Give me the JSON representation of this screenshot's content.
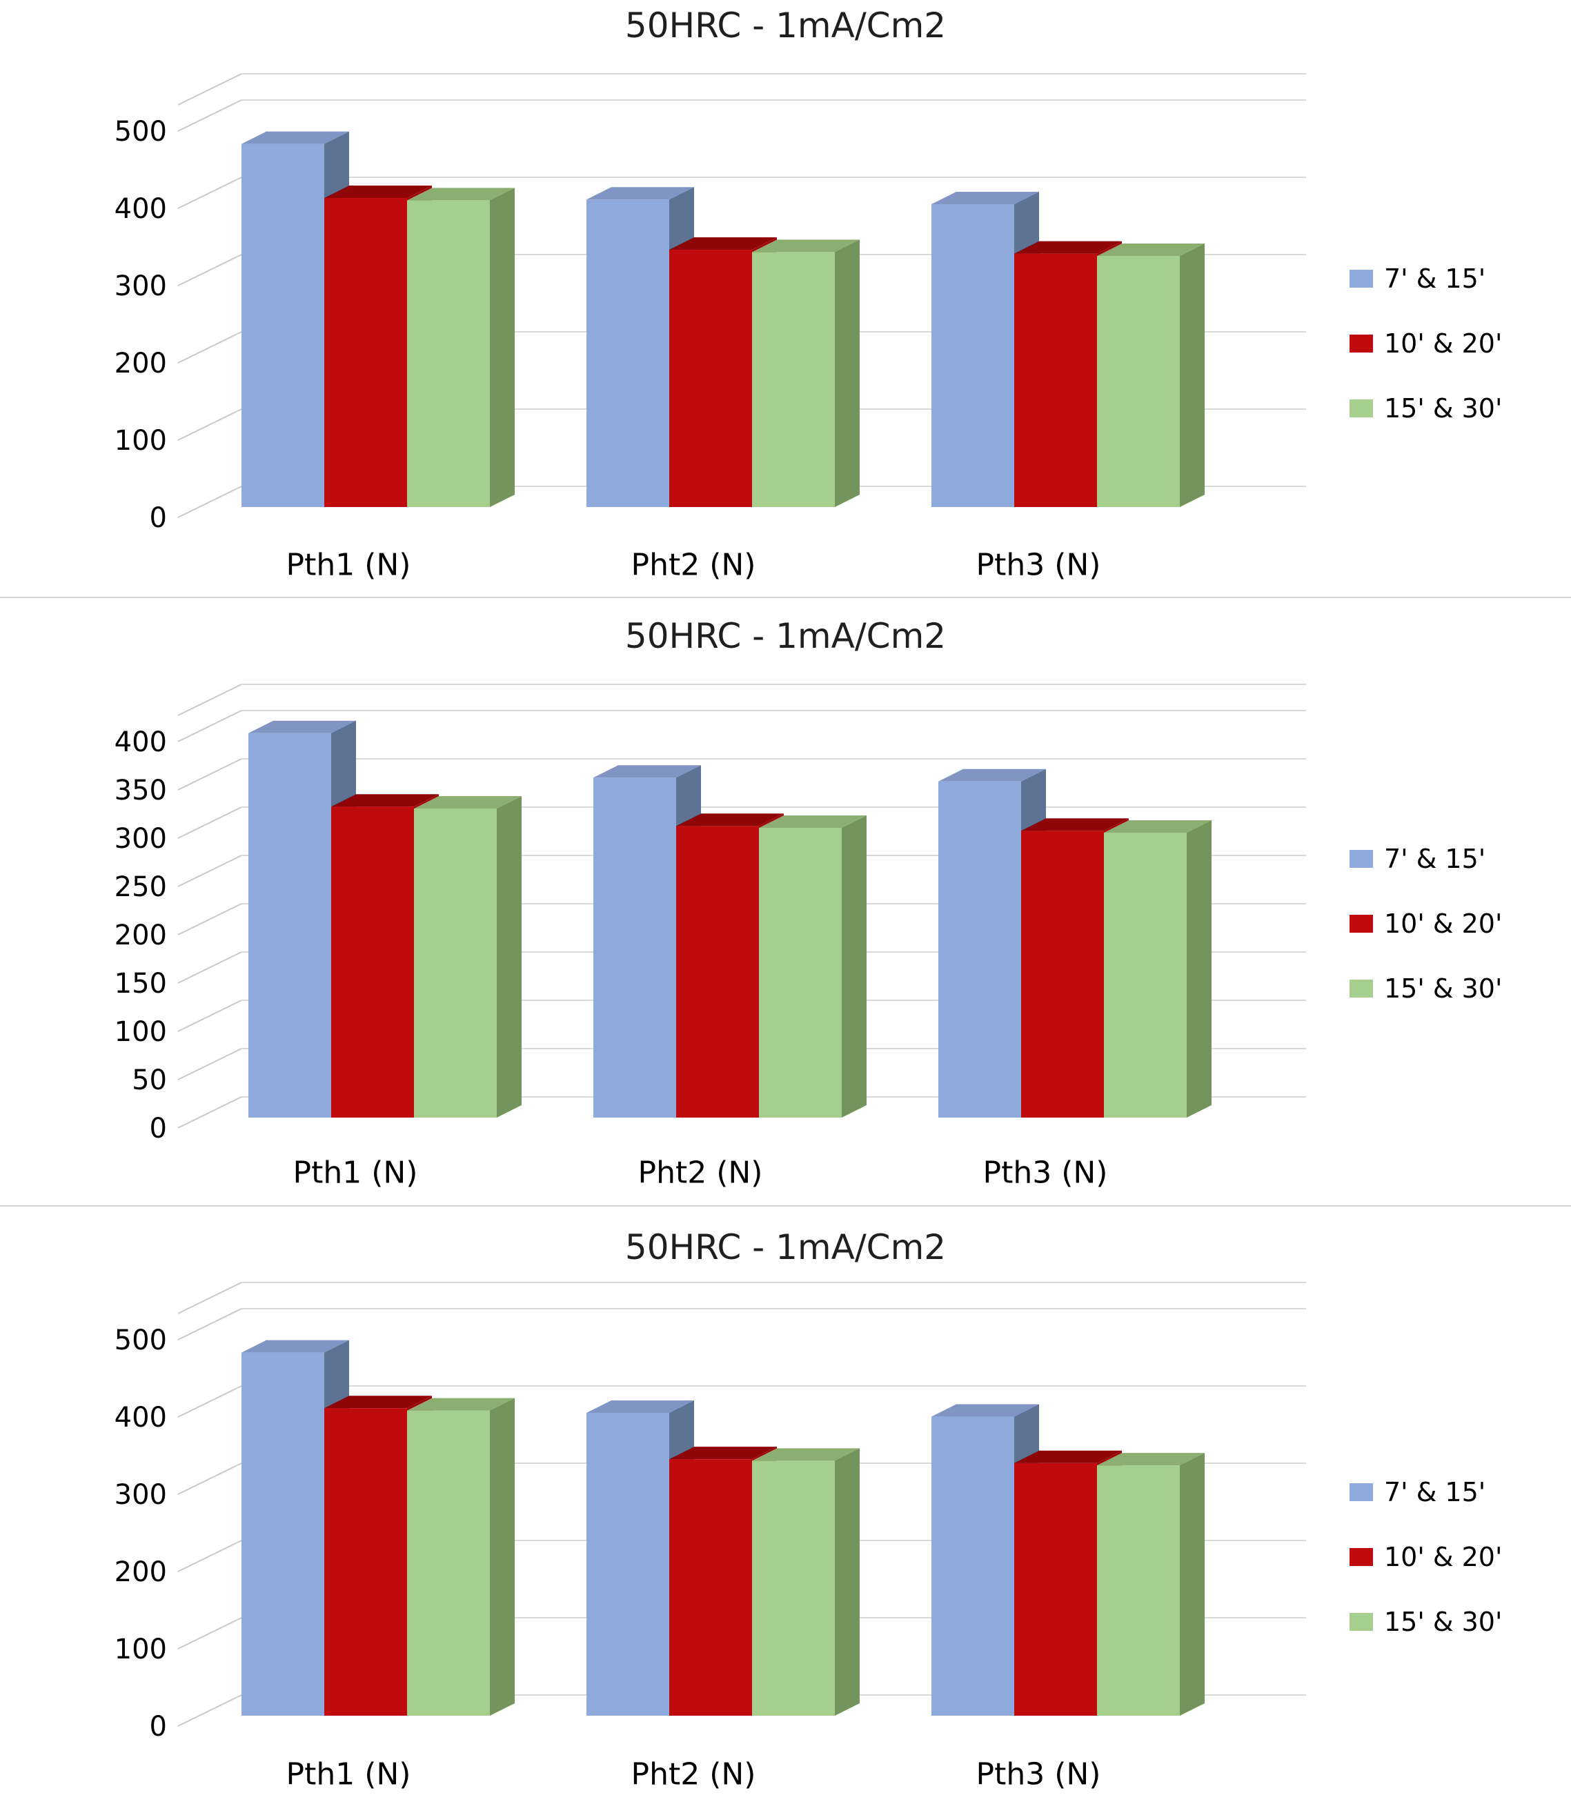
{
  "page": {
    "background": "#ffffff",
    "divider_color": "#d5d5d5"
  },
  "chart_data": [
    {
      "type": "bar",
      "style": "3d-clustered-column",
      "title": "50HRC - 1mA/Cm2",
      "categories": [
        "Pth1 (N)",
        "Pht2 (N)",
        "Pth3 (N)"
      ],
      "series": [
        {
          "name": "7' & 15'",
          "color": "#8EA9DB",
          "color_top": "#8095C3",
          "color_side": "#5E7294",
          "values": [
            470,
            398,
            392
          ]
        },
        {
          "name": "10' & 20'",
          "color": "#C00B0E",
          "color_top": "#900608",
          "color_side": "#9C080A",
          "values": [
            400,
            333,
            328
          ]
        },
        {
          "name": "15' & 30'",
          "color": "#A6CE8C",
          "color_top": "#8CAE71",
          "color_side": "#75935C",
          "values": [
            397,
            330,
            325
          ]
        }
      ],
      "ylim": [
        0,
        500
      ],
      "ytick_step": 100,
      "grid": true,
      "legend_position": "right"
    },
    {
      "type": "bar",
      "style": "3d-clustered-column",
      "title": "50HRC - 1mA/Cm2",
      "categories": [
        "Pth1 (N)",
        "Pht2 (N)",
        "Pth3 (N)"
      ],
      "series": [
        {
          "name": "7' & 15'",
          "color": "#8EA9DB",
          "color_top": "#8095C3",
          "color_side": "#5E7294",
          "values": [
            398,
            352,
            348
          ]
        },
        {
          "name": "10' & 20'",
          "color": "#C00B0E",
          "color_top": "#900608",
          "color_side": "#9C080A",
          "values": [
            322,
            302,
            297
          ]
        },
        {
          "name": "15' & 30'",
          "color": "#A6CE8C",
          "color_top": "#8CAE71",
          "color_side": "#75935C",
          "values": [
            320,
            300,
            295
          ]
        }
      ],
      "ylim": [
        0,
        400
      ],
      "ytick_step": 50,
      "grid": true,
      "legend_position": "right"
    },
    {
      "type": "bar",
      "style": "3d-clustered-column",
      "title": "50HRC - 1mA/Cm2",
      "categories": [
        "Pth1 (N)",
        "Pht2 (N)",
        "Pth3 (N)"
      ],
      "series": [
        {
          "name": "7' & 15'",
          "color": "#8EA9DB",
          "color_top": "#8095C3",
          "color_side": "#5E7294",
          "values": [
            470,
            392,
            387
          ]
        },
        {
          "name": "10' & 20'",
          "color": "#C00B0E",
          "color_top": "#900608",
          "color_side": "#9C080A",
          "values": [
            398,
            332,
            327
          ]
        },
        {
          "name": "15' & 30'",
          "color": "#A6CE8C",
          "color_top": "#8CAE71",
          "color_side": "#75935C",
          "values": [
            395,
            330,
            324
          ]
        }
      ],
      "ylim": [
        0,
        500
      ],
      "ytick_step": 100,
      "grid": true,
      "legend_position": "right"
    }
  ]
}
